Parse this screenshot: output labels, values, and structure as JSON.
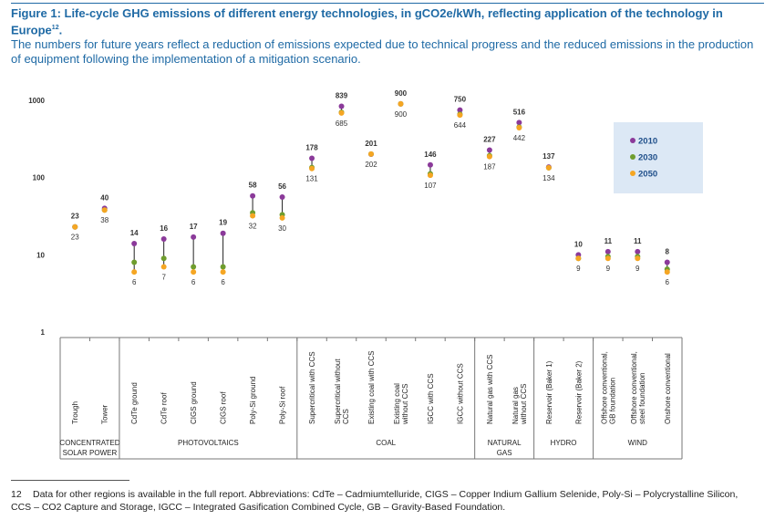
{
  "figure": {
    "title": "Figure 1: Life-cycle GHG emissions of different energy technologies, in gCO2e/kWh, reflecting application of the technology in Europe",
    "title_ref": "12",
    "subtitle": "The numbers for future years reflect a reduction of emissions expected due to technical progress and the reduced emissions in the production of equipment following the implementation of a mitigation scenario."
  },
  "chart_data": {
    "type": "scatter",
    "yscale": "log",
    "ylim": [
      1,
      1000
    ],
    "yticks": [
      "1",
      "10",
      "100",
      "1000"
    ],
    "series": [
      {
        "name": "2010",
        "color": "#8b3a9a"
      },
      {
        "name": "2030",
        "color": "#6f9d2e"
      },
      {
        "name": "2050",
        "color": "#f5a623"
      }
    ],
    "legend_position": "right",
    "categories": [
      {
        "label": "Trough",
        "v2010": 23,
        "v2030": 23,
        "v2050": 23,
        "top": "23",
        "bottom": "23"
      },
      {
        "label": "Tower",
        "v2010": 40,
        "v2030": 38,
        "v2050": 38,
        "top": "40",
        "bottom": "38"
      },
      {
        "label": "CdTe ground",
        "v2010": 14,
        "v2030": 8,
        "v2050": 6,
        "top": "14",
        "bottom": "6"
      },
      {
        "label": "CdTe roof",
        "v2010": 16,
        "v2030": 9,
        "v2050": 7,
        "top": "16",
        "bottom": "7"
      },
      {
        "label": "CIGS ground",
        "v2010": 17,
        "v2030": 7,
        "v2050": 6,
        "top": "17",
        "bottom": "6"
      },
      {
        "label": "CIGS roof",
        "v2010": 19,
        "v2030": 7,
        "v2050": 6,
        "top": "19",
        "bottom": "6"
      },
      {
        "label": "Poly-Si ground",
        "v2010": 58,
        "v2030": 35,
        "v2050": 32,
        "top": "58",
        "bottom": "32"
      },
      {
        "label": "Poly-Si roof",
        "v2010": 56,
        "v2030": 33,
        "v2050": 30,
        "top": "56",
        "bottom": "30"
      },
      {
        "label": "Supercritical with CCS",
        "v2010": 178,
        "v2030": 135,
        "v2050": 131,
        "top": "178",
        "bottom": "131"
      },
      {
        "label": "Supercritical without CCS",
        "v2010": 839,
        "v2030": 700,
        "v2050": 685,
        "top": "839",
        "bottom": "685"
      },
      {
        "label": "Existing coal with CCS",
        "v2010": 201,
        "v2030": 202,
        "v2050": 202,
        "top": "201",
        "bottom": "202"
      },
      {
        "label": "Existing coal without CCS",
        "v2010": 900,
        "v2030": 900,
        "v2050": 900,
        "top": "900",
        "bottom": "900"
      },
      {
        "label": "IGCC with CCS",
        "v2010": 146,
        "v2030": 112,
        "v2050": 107,
        "top": "146",
        "bottom": "107"
      },
      {
        "label": "IGCC without CCS",
        "v2010": 750,
        "v2030": 660,
        "v2050": 644,
        "top": "750",
        "bottom": "644"
      },
      {
        "label": "Natural gas with CCS",
        "v2010": 227,
        "v2030": 192,
        "v2050": 187,
        "top": "227",
        "bottom": "187"
      },
      {
        "label": "Natural gas without CCS",
        "v2010": 516,
        "v2030": 450,
        "v2050": 442,
        "top": "516",
        "bottom": "442"
      },
      {
        "label": "Reservoir (Baker 1)",
        "v2010": 137,
        "v2030": 134,
        "v2050": 134,
        "top": "137",
        "bottom": "134"
      },
      {
        "label": "Reservoir (Baker 2)",
        "v2010": 10,
        "v2030": 9,
        "v2050": 9,
        "top": "10",
        "bottom": "9"
      },
      {
        "label": "Offshore conventional, GB foundation",
        "v2010": 11,
        "v2030": 9.5,
        "v2050": 9,
        "top": "11",
        "bottom": "9"
      },
      {
        "label": "Offshore conventional, steel foundation",
        "v2010": 11,
        "v2030": 9.5,
        "v2050": 9,
        "top": "11",
        "bottom": "9"
      },
      {
        "label": "Onshore conventional",
        "v2010": 8,
        "v2030": 6.5,
        "v2050": 6,
        "top": "8",
        "bottom": "6"
      }
    ],
    "groups": [
      {
        "label": "CONCENTRATED SOLAR POWER",
        "start": 0,
        "end": 1
      },
      {
        "label": "PHOTOVOLTAICS",
        "start": 2,
        "end": 7
      },
      {
        "label": "COAL",
        "start": 8,
        "end": 13
      },
      {
        "label": "NATURAL GAS",
        "start": 14,
        "end": 15
      },
      {
        "label": "HYDRO",
        "start": 16,
        "end": 17
      },
      {
        "label": "WIND",
        "start": 18,
        "end": 20
      }
    ]
  },
  "footnote": {
    "number": "12",
    "text": "Data for other regions is available in the full report. Abbreviations: CdTe – Cadmiumtelluride, CIGS – Copper Indium Gallium Selenide, Poly-Si – Polycrystalline Silicon, CCS – CO2 Capture and Storage, IGCC – Integrated Gasification Combined Cycle, GB – Gravity-Based Foundation."
  }
}
